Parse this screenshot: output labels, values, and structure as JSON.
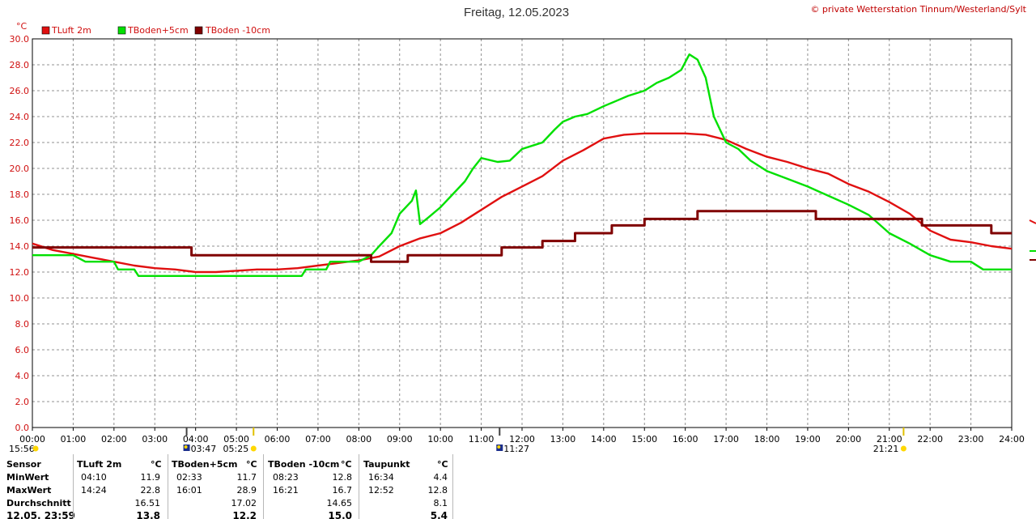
{
  "header": {
    "title": "Freitag, 12.05.2023",
    "copyright": "© private Wetterstation Tinnum/Westerland/Sylt"
  },
  "chart_data": {
    "type": "line",
    "unit": "°C",
    "ylim": [
      0,
      30
    ],
    "y_ticks": [
      "0.0",
      "2.0",
      "4.0",
      "6.0",
      "8.0",
      "10.0",
      "12.0",
      "14.0",
      "16.0",
      "18.0",
      "20.0",
      "22.0",
      "24.0",
      "26.0",
      "28.0",
      "30.0"
    ],
    "x_ticks": [
      "00:00",
      "01:00",
      "02:00",
      "03:00",
      "04:00",
      "05:00",
      "06:00",
      "07:00",
      "08:00",
      "09:00",
      "10:00",
      "11:00",
      "12:00",
      "13:00",
      "14:00",
      "15:00",
      "16:00",
      "17:00",
      "18:00",
      "19:00",
      "20:00",
      "21:00",
      "22:00",
      "23:00",
      "24:00"
    ],
    "xlim_hours": [
      0,
      24
    ],
    "grid": true,
    "legend_position": "top-left",
    "series": [
      {
        "name": "TLuft 2m",
        "color": "#e01010",
        "points": [
          [
            0,
            14.2
          ],
          [
            0.5,
            13.7
          ],
          [
            1,
            13.4
          ],
          [
            1.5,
            13.1
          ],
          [
            2,
            12.8
          ],
          [
            2.5,
            12.5
          ],
          [
            3,
            12.3
          ],
          [
            3.5,
            12.2
          ],
          [
            4,
            12.0
          ],
          [
            4.5,
            12.0
          ],
          [
            5,
            12.1
          ],
          [
            5.5,
            12.2
          ],
          [
            6,
            12.2
          ],
          [
            6.5,
            12.3
          ],
          [
            7,
            12.5
          ],
          [
            7.5,
            12.7
          ],
          [
            8,
            12.9
          ],
          [
            8.5,
            13.2
          ],
          [
            9,
            14.0
          ],
          [
            9.5,
            14.6
          ],
          [
            10,
            15.0
          ],
          [
            10.5,
            15.8
          ],
          [
            11,
            16.8
          ],
          [
            11.5,
            17.8
          ],
          [
            12,
            18.6
          ],
          [
            12.5,
            19.4
          ],
          [
            13,
            20.6
          ],
          [
            13.5,
            21.4
          ],
          [
            14,
            22.3
          ],
          [
            14.5,
            22.6
          ],
          [
            15,
            22.7
          ],
          [
            15.5,
            22.7
          ],
          [
            16,
            22.7
          ],
          [
            16.5,
            22.6
          ],
          [
            17,
            22.2
          ],
          [
            17.5,
            21.5
          ],
          [
            18,
            20.9
          ],
          [
            18.5,
            20.5
          ],
          [
            19,
            20.0
          ],
          [
            19.5,
            19.6
          ],
          [
            20,
            18.8
          ],
          [
            20.5,
            18.2
          ],
          [
            21,
            17.4
          ],
          [
            21.5,
            16.5
          ],
          [
            22,
            15.2
          ],
          [
            22.5,
            14.5
          ],
          [
            23,
            14.3
          ],
          [
            23.5,
            14.0
          ],
          [
            24,
            13.8
          ]
        ]
      },
      {
        "name": "TBoden+5cm",
        "color": "#00e000",
        "points": [
          [
            0,
            13.3
          ],
          [
            1,
            13.3
          ],
          [
            1.3,
            12.8
          ],
          [
            2,
            12.8
          ],
          [
            2.1,
            12.2
          ],
          [
            2.5,
            12.2
          ],
          [
            2.6,
            11.7
          ],
          [
            4,
            11.7
          ],
          [
            5,
            11.7
          ],
          [
            6,
            11.7
          ],
          [
            6.6,
            11.7
          ],
          [
            6.7,
            12.2
          ],
          [
            7.2,
            12.2
          ],
          [
            7.3,
            12.8
          ],
          [
            8,
            12.8
          ],
          [
            8.3,
            13.3
          ],
          [
            8.5,
            14.0
          ],
          [
            8.8,
            15.0
          ],
          [
            9.0,
            16.5
          ],
          [
            9.3,
            17.5
          ],
          [
            9.4,
            18.3
          ],
          [
            9.5,
            15.7
          ],
          [
            9.7,
            16.2
          ],
          [
            10,
            17.0
          ],
          [
            10.3,
            18.0
          ],
          [
            10.6,
            19.0
          ],
          [
            10.8,
            20.0
          ],
          [
            11,
            20.8
          ],
          [
            11.4,
            20.5
          ],
          [
            11.7,
            20.6
          ],
          [
            12,
            21.5
          ],
          [
            12.3,
            21.8
          ],
          [
            12.5,
            22.0
          ],
          [
            12.8,
            23.0
          ],
          [
            13,
            23.6
          ],
          [
            13.3,
            24.0
          ],
          [
            13.6,
            24.2
          ],
          [
            14,
            24.8
          ],
          [
            14.3,
            25.2
          ],
          [
            14.6,
            25.6
          ],
          [
            15,
            26.0
          ],
          [
            15.3,
            26.6
          ],
          [
            15.6,
            27.0
          ],
          [
            15.9,
            27.6
          ],
          [
            16.1,
            28.8
          ],
          [
            16.3,
            28.4
          ],
          [
            16.5,
            27.0
          ],
          [
            16.7,
            24.0
          ],
          [
            17,
            22.0
          ],
          [
            17.3,
            21.5
          ],
          [
            17.6,
            20.6
          ],
          [
            18,
            19.8
          ],
          [
            18.5,
            19.2
          ],
          [
            19,
            18.6
          ],
          [
            19.5,
            17.9
          ],
          [
            20,
            17.2
          ],
          [
            20.5,
            16.4
          ],
          [
            21,
            15.0
          ],
          [
            21.5,
            14.2
          ],
          [
            22,
            13.3
          ],
          [
            22.5,
            12.8
          ],
          [
            23,
            12.8
          ],
          [
            23.3,
            12.2
          ],
          [
            24,
            12.2
          ]
        ]
      },
      {
        "name": "TBoden -10cm",
        "color": "#800000",
        "points": [
          [
            0,
            13.9
          ],
          [
            3.9,
            13.9
          ],
          [
            3.9,
            13.3
          ],
          [
            8.3,
            13.3
          ],
          [
            8.3,
            12.8
          ],
          [
            9.2,
            12.8
          ],
          [
            9.2,
            13.3
          ],
          [
            11.5,
            13.3
          ],
          [
            11.5,
            13.9
          ],
          [
            12.5,
            13.9
          ],
          [
            12.5,
            14.4
          ],
          [
            13.3,
            14.4
          ],
          [
            13.3,
            15.0
          ],
          [
            14.2,
            15.0
          ],
          [
            14.2,
            15.6
          ],
          [
            15,
            15.6
          ],
          [
            15.0,
            16.1
          ],
          [
            16.3,
            16.1
          ],
          [
            16.3,
            16.7
          ],
          [
            19.2,
            16.7
          ],
          [
            19.2,
            16.1
          ],
          [
            21.8,
            16.1
          ],
          [
            21.8,
            15.6
          ],
          [
            23.5,
            15.6
          ],
          [
            23.5,
            15.0
          ],
          [
            24,
            15.0
          ]
        ]
      }
    ]
  },
  "astro": [
    {
      "name": "sunrise",
      "hour": 5.42,
      "label": "05:25",
      "color": "#ffd700"
    },
    {
      "name": "sunset",
      "hour": 21.35,
      "label": "21:21",
      "color": "#ffd700"
    },
    {
      "name": "moonrise",
      "hour": 3.78,
      "label": "03:47",
      "color": "#1a2e8c"
    },
    {
      "name": "moonset",
      "hour": 11.45,
      "label": "11:27",
      "color": "#1a2e8c"
    },
    {
      "name": "moon-prev",
      "label": "15:56",
      "color": "#ffd700"
    }
  ],
  "table": {
    "row_labels": [
      "Sensor",
      "MinWert",
      "MaxWert",
      "Durchschnitt",
      "12.05. 23:59"
    ],
    "columns": [
      {
        "sensor": "TLuft 2m",
        "unit": "°C",
        "min_time": "04:10",
        "min": "11.9",
        "max_time": "14:24",
        "max": "22.8",
        "avg": "16.51",
        "current": "13.8"
      },
      {
        "sensor": "TBoden+5cm",
        "unit": "°C",
        "min_time": "02:33",
        "min": "11.7",
        "max_time": "16:01",
        "max": "28.9",
        "avg": "17.02",
        "current": "12.2"
      },
      {
        "sensor": "TBoden -10cm",
        "unit": "°C",
        "min_time": "08:23",
        "min": "12.8",
        "max_time": "16:21",
        "max": "16.7",
        "avg": "14.65",
        "current": "15.0"
      },
      {
        "sensor": "Taupunkt",
        "unit": "°C",
        "min_time": "16:34",
        "min": "4.4",
        "max_time": "12:52",
        "max": "12.8",
        "avg": "8.1",
        "current": "5.4"
      }
    ]
  }
}
